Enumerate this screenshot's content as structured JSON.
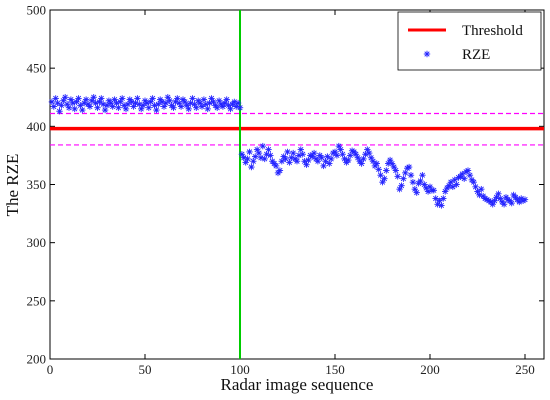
{
  "chart_data": {
    "type": "scatter",
    "title": "",
    "xlabel": "Radar image sequence",
    "ylabel": "The RZE",
    "xlim": [
      0,
      260
    ],
    "ylim": [
      200,
      500
    ],
    "x_ticks": [
      "0",
      "50",
      "100",
      "150",
      "200",
      "250"
    ],
    "y_ticks": [
      "200",
      "250",
      "300",
      "350",
      "400",
      "450",
      "500"
    ],
    "grid": false,
    "legend_position": "top-right",
    "threshold": {
      "name": "Threshold",
      "value": 398,
      "color": "#ff0000"
    },
    "band_lines": {
      "values": [
        384,
        411
      ],
      "color": "#ff00ff",
      "style": "dashed"
    },
    "change_point": {
      "x": 100,
      "color": "#00cc00"
    },
    "series": [
      {
        "name": "RZE",
        "marker": "asterisk",
        "color": "#2222ff",
        "x": [
          1,
          2,
          3,
          4,
          5,
          6,
          7,
          8,
          9,
          10,
          11,
          12,
          13,
          14,
          15,
          16,
          17,
          18,
          19,
          20,
          21,
          22,
          23,
          24,
          25,
          26,
          27,
          28,
          29,
          30,
          31,
          32,
          33,
          34,
          35,
          36,
          37,
          38,
          39,
          40,
          41,
          42,
          43,
          44,
          45,
          46,
          47,
          48,
          49,
          50,
          51,
          52,
          53,
          54,
          55,
          56,
          57,
          58,
          59,
          60,
          61,
          62,
          63,
          64,
          65,
          66,
          67,
          68,
          69,
          70,
          71,
          72,
          73,
          74,
          75,
          76,
          77,
          78,
          79,
          80,
          81,
          82,
          83,
          84,
          85,
          86,
          87,
          88,
          89,
          90,
          91,
          92,
          93,
          94,
          95,
          96,
          97,
          98,
          99,
          100,
          101,
          102,
          103,
          104,
          105,
          106,
          107,
          108,
          109,
          110,
          111,
          112,
          113,
          114,
          115,
          116,
          117,
          118,
          119,
          120,
          121,
          122,
          123,
          124,
          125,
          126,
          127,
          128,
          129,
          130,
          131,
          132,
          133,
          134,
          135,
          136,
          137,
          138,
          139,
          140,
          141,
          142,
          143,
          144,
          145,
          146,
          147,
          148,
          149,
          150,
          151,
          152,
          153,
          154,
          155,
          156,
          157,
          158,
          159,
          160,
          161,
          162,
          163,
          164,
          165,
          166,
          167,
          168,
          169,
          170,
          171,
          172,
          173,
          174,
          175,
          176,
          177,
          178,
          179,
          180,
          181,
          182,
          183,
          184,
          185,
          186,
          187,
          188,
          189,
          190,
          191,
          192,
          193,
          194,
          195,
          196,
          197,
          198,
          199,
          200,
          201,
          202,
          203,
          204,
          205,
          206,
          207,
          208,
          209,
          210,
          211,
          212,
          213,
          214,
          215,
          216,
          217,
          218,
          219,
          220,
          221,
          222,
          223,
          224,
          225,
          226,
          227,
          228,
          229,
          230,
          231,
          232,
          233,
          234,
          235,
          236,
          237,
          238,
          239,
          240,
          241,
          242,
          243,
          244,
          245,
          246,
          247,
          248,
          249,
          250
        ],
        "y": [
          421,
          417,
          424,
          420,
          413,
          418,
          422,
          425,
          419,
          416,
          423,
          420,
          415,
          421,
          424,
          418,
          414,
          420,
          423,
          419,
          417,
          422,
          425,
          420,
          416,
          421,
          424,
          419,
          414,
          418,
          422,
          420,
          417,
          423,
          420,
          416,
          421,
          424,
          418,
          415,
          419,
          423,
          421,
          417,
          420,
          424,
          419,
          415,
          418,
          422,
          420,
          416,
          421,
          424,
          418,
          414,
          419,
          423,
          421,
          417,
          420,
          425,
          422,
          418,
          416,
          421,
          424,
          420,
          417,
          423,
          421,
          418,
          415,
          420,
          424,
          419,
          416,
          422,
          420,
          417,
          423,
          419,
          415,
          420,
          424,
          421,
          418,
          416,
          422,
          419,
          417,
          420,
          423,
          418,
          415,
          419,
          421,
          417,
          420,
          416,
          376,
          373,
          369,
          372,
          378,
          365,
          370,
          374,
          380,
          377,
          373,
          383,
          372,
          376,
          380,
          375,
          370,
          368,
          366,
          360,
          362,
          370,
          374,
          372,
          378,
          369,
          373,
          377,
          372,
          370,
          375,
          380,
          376,
          370,
          367,
          371,
          375,
          374,
          377,
          372,
          370,
          375,
          373,
          366,
          370,
          374,
          368,
          372,
          377,
          378,
          375,
          383,
          380,
          376,
          372,
          369,
          371,
          375,
          379,
          378,
          376,
          373,
          370,
          368,
          372,
          376,
          380,
          377,
          373,
          370,
          366,
          368,
          363,
          358,
          352,
          355,
          362,
          368,
          371,
          368,
          365,
          362,
          357,
          346,
          349,
          355,
          360,
          364,
          365,
          358,
          352,
          346,
          343,
          351,
          353,
          358,
          350,
          347,
          344,
          348,
          345,
          345,
          338,
          333,
          336,
          332,
          338,
          344,
          347,
          349,
          352,
          348,
          354,
          350,
          356,
          357,
          359,
          355,
          361,
          362,
          358,
          354,
          352,
          348,
          344,
          341,
          346,
          340,
          338,
          337,
          336,
          335,
          333,
          336,
          339,
          342,
          338,
          335,
          333,
          339,
          337,
          336,
          334,
          341,
          339,
          337,
          335,
          338,
          336,
          337
        ]
      }
    ]
  }
}
